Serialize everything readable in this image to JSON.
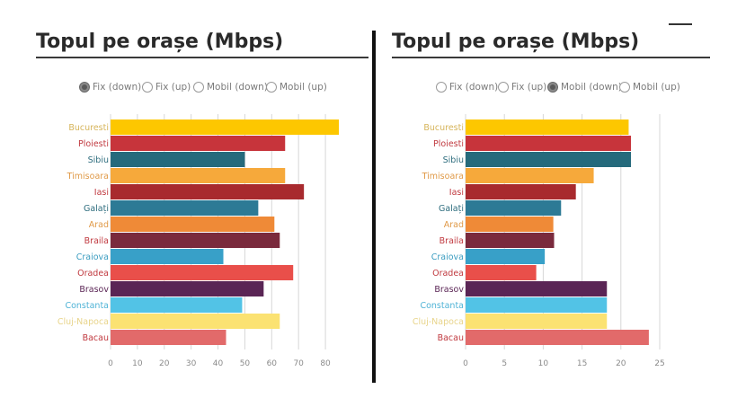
{
  "colors": {
    "bucuresti": "#fdc700",
    "ploiesti": "#c7343b",
    "sibiu": "#256a7c",
    "timisoara": "#f6a93b",
    "iasi": "#a82a2e",
    "galati": "#2d7a95",
    "arad": "#ef8a37",
    "braila": "#7a2a3d",
    "craiova": "#38a0c8",
    "oradea": "#e94f4a",
    "brasov": "#5a2555",
    "constanta": "#52c3e6",
    "cluj": "#fbe272",
    "bacau": "#e26a6a",
    "label_yellow": "#d6b45a",
    "label_red": "#c0393f",
    "label_teal": "#2e6d7e",
    "label_orange": "#e09a48",
    "label_blue": "#3a9cc0",
    "label_purple": "#5a2555",
    "label_lightblue": "#4fb3d6",
    "label_paleyellow": "#e8d48a"
  },
  "left": {
    "title": "Topul pe orașe (Mbps)",
    "radios": [
      {
        "label": "Fix (down)",
        "selected": true
      },
      {
        "label": "Fix (up)",
        "selected": false
      },
      {
        "label": "Mobil (down)",
        "selected": false
      },
      {
        "label": "Mobil (up)",
        "selected": false
      }
    ]
  },
  "right": {
    "title": "Topul pe orașe (Mbps)",
    "radios": [
      {
        "label": "Fix (down)",
        "selected": false
      },
      {
        "label": "Fix (up)",
        "selected": false
      },
      {
        "label": "Mobil (down)",
        "selected": true
      },
      {
        "label": "Mobil (up)",
        "selected": false
      }
    ]
  },
  "chart_data": [
    {
      "type": "bar",
      "orientation": "horizontal",
      "title": "Topul pe orașe (Mbps)",
      "selected_metric": "Fix (down)",
      "categories": [
        "Bucuresti",
        "Ploiesti",
        "Sibiu",
        "Timisoara",
        "Iasi",
        "Galați",
        "Arad",
        "Braila",
        "Craiova",
        "Oradea",
        "Brasov",
        "Constanta",
        "Cluj-Napoca",
        "Bacau"
      ],
      "label_colors": [
        "label_yellow",
        "label_red",
        "label_teal",
        "label_orange",
        "label_red",
        "label_teal",
        "label_orange",
        "label_red",
        "label_blue",
        "label_red",
        "label_purple",
        "label_lightblue",
        "label_paleyellow",
        "label_red"
      ],
      "bar_colors": [
        "bucuresti",
        "ploiesti",
        "sibiu",
        "timisoara",
        "iasi",
        "galati",
        "arad",
        "braila",
        "craiova",
        "oradea",
        "brasov",
        "constanta",
        "cluj",
        "bacau"
      ],
      "values": [
        85,
        65,
        50,
        65,
        72,
        55,
        61,
        63,
        42,
        68,
        57,
        49,
        63,
        43
      ],
      "xticks": [
        0,
        10,
        20,
        30,
        40,
        50,
        60,
        70,
        80
      ],
      "xlim": [
        0,
        86
      ],
      "grid": true
    },
    {
      "type": "bar",
      "orientation": "horizontal",
      "title": "Topul pe orașe (Mbps)",
      "selected_metric": "Mobil (down)",
      "categories": [
        "Bucuresti",
        "Ploiesti",
        "Sibiu",
        "Timisoara",
        "Iasi",
        "Galați",
        "Arad",
        "Braila",
        "Craiova",
        "Oradea",
        "Brasov",
        "Constanta",
        "Cluj-Napoca",
        "Bacau"
      ],
      "label_colors": [
        "label_yellow",
        "label_red",
        "label_teal",
        "label_orange",
        "label_red",
        "label_teal",
        "label_orange",
        "label_red",
        "label_blue",
        "label_red",
        "label_purple",
        "label_lightblue",
        "label_paleyellow",
        "label_red"
      ],
      "bar_colors": [
        "bucuresti",
        "ploiesti",
        "sibiu",
        "timisoara",
        "iasi",
        "galati",
        "arad",
        "braila",
        "craiova",
        "oradea",
        "brasov",
        "constanta",
        "cluj",
        "bacau"
      ],
      "values": [
        21,
        21.3,
        21.3,
        16.5,
        14.2,
        12.3,
        11.3,
        11.4,
        10.2,
        9.1,
        18.2,
        18.2,
        18.2,
        23.6
      ],
      "xticks": [
        0,
        5,
        10,
        15,
        20,
        25
      ],
      "xlim": [
        0,
        25
      ],
      "grid": true
    }
  ]
}
